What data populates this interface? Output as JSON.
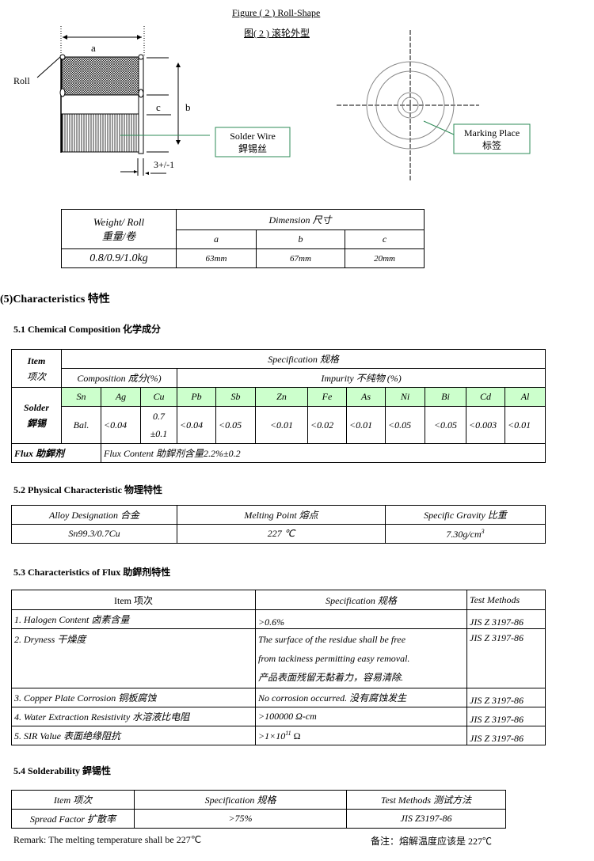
{
  "figure": {
    "title_en": "Figure ( 2 ) Roll-Shape",
    "title_cn": "图( 2 ) 滚轮外型",
    "label_a": "a",
    "label_b": "b",
    "label_c": "c",
    "label_roll": "Roll",
    "label_gap": "3+/-1",
    "solder_wire_en": "Solder Wire",
    "solder_wire_cn": "銲锡丝",
    "marking_en": "Marking Place",
    "marking_cn": "标签",
    "accent_color": "#2e8b57"
  },
  "weight_table": {
    "weight_header": "Weight/ Roll",
    "weight_header_cn": "重量/卷",
    "dimension_header": "Dimension 尺寸",
    "cols": [
      "a",
      "b",
      "c"
    ],
    "weight": "0.8/0.9/1.0kg",
    "values": [
      "63mm",
      "67mm",
      "20mm"
    ]
  },
  "section5": {
    "title": "(5)Characteristics 特性"
  },
  "s51": {
    "title": "5.1 Chemical Composition 化学成分",
    "item": "Item",
    "item_cn": "项次",
    "spec": "Specification 规格",
    "composition": "Composition 成分(%)",
    "impurity": "Impurity 不纯物 (%)",
    "solder": "Solder",
    "solder_cn": "銲锡",
    "elements": [
      "Sn",
      "Ag",
      "Cu",
      "Pb",
      "Sb",
      "Zn",
      "Fe",
      "As",
      "Ni",
      "Bi",
      "Cd",
      "Al"
    ],
    "values": [
      "Bal.",
      "<0.04",
      "0.7",
      "<0.04",
      "<0.05",
      "<0.01",
      "<0.02",
      "<0.01",
      "<0.05",
      "<0.05",
      "<0.003",
      "<0.01"
    ],
    "cu_tol": "±0.1",
    "flux": "Flux 助銲剂",
    "flux_content": "Flux Content 助銲剂含量2.2%±0.2",
    "header_color": "#ccffcc"
  },
  "s52": {
    "title": "5.2 Physical Characteristic 物理特性",
    "headers": [
      "Alloy Designation 合金",
      "Melting Point 熔点",
      "Specific Gravity 比重"
    ],
    "values": [
      "Sn99.3/0.7Cu",
      "227 ℃",
      "7.30g/cm"
    ],
    "sup": "3"
  },
  "s53": {
    "title": "5.3 Characteristics of Flux 助銲剂特性",
    "headers": [
      "Item 项次",
      "Specification 规格",
      "Test Methods"
    ],
    "rows": [
      {
        "item": "1.  Halogen Content   卤素含量",
        "spec": ">0.6%",
        "method": "JIS Z 3197-86"
      },
      {
        "item": "2. Dryness  干燥度",
        "spec": "The surface of the residue shall be free",
        "spec2": "from tackiness permitting easy removal.",
        "spec3": "产品表面残留无黏着力，容易清除.",
        "method": "JIS Z 3197-86"
      },
      {
        "item": "3. Copper Plate  Corrosion 铜板腐蚀",
        "spec": "No corrosion occurred.  没有腐蚀发生",
        "method": "JIS Z 3197-86"
      },
      {
        "item": "4. Water Extraction Resistivity  水溶液比电阻",
        "spec": ">100000 Ω-cm",
        "method": "JIS Z 3197-86"
      },
      {
        "item": "5. SIR Value  表面绝缘阻抗",
        "spec": ">1×10",
        "sup": "11",
        "unit": " Ω",
        "method": "JIS Z 3197-86"
      }
    ]
  },
  "s54": {
    "title": "5.4  Solderability 銲锡性",
    "headers": [
      "Item 项次",
      "Specification 规格",
      "Test Methods 测试方法"
    ],
    "row": [
      "Spread Factor 扩散率",
      ">75%",
      "JIS Z3197-86"
    ]
  },
  "remark": {
    "en": "Remark: The melting temperature shall be 227℃",
    "cn": "备注：熔解温度应该是 227℃"
  }
}
